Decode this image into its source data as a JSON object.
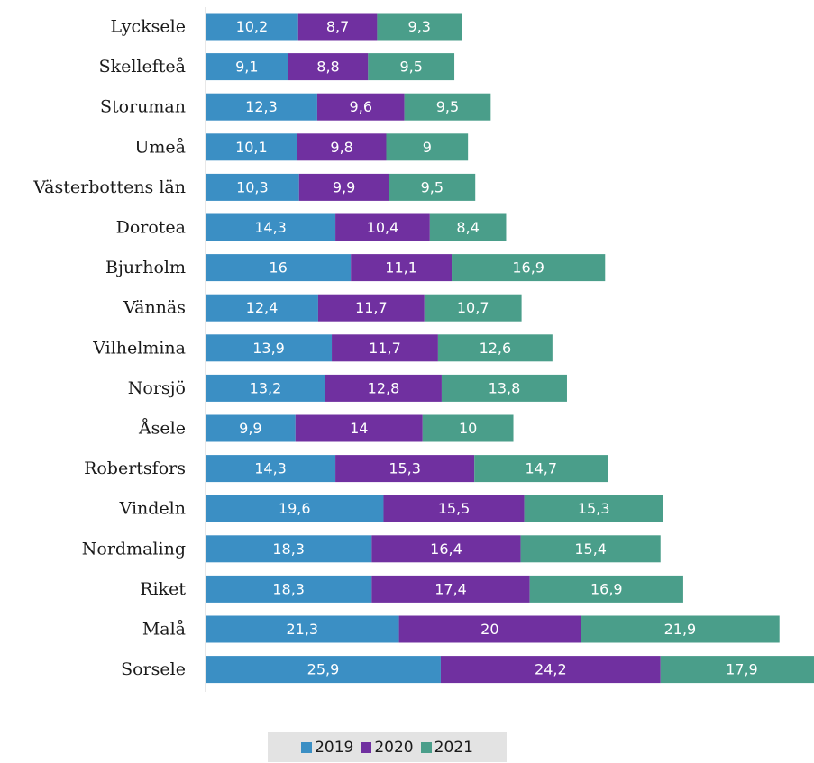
{
  "chart_data": {
    "type": "bar",
    "orientation": "horizontal",
    "stacked": true,
    "title": "",
    "xlabel": "",
    "ylabel": "",
    "categories": [
      "Lycksele",
      "Skellefteå",
      "Storuman",
      "Umeå",
      "Västerbottens län",
      "Dorotea",
      "Bjurholm",
      "Vännäs",
      "Vilhelmina",
      "Norsjö",
      "Åsele",
      "Robertsfors",
      "Vindeln",
      "Nordmaling",
      "Riket",
      "Malå",
      "Sorsele"
    ],
    "series": [
      {
        "name": "2019",
        "color": "#3b8fc4",
        "values": [
          10.2,
          9.1,
          12.3,
          10.1,
          10.3,
          14.3,
          16,
          12.4,
          13.9,
          13.2,
          9.9,
          14.3,
          19.6,
          18.3,
          18.3,
          21.3,
          25.9
        ],
        "labels": [
          "10,2",
          "9,1",
          "12,3",
          "10,1",
          "10,3",
          "14,3",
          "16",
          "12,4",
          "13,9",
          "13,2",
          "9,9",
          "14,3",
          "19,6",
          "18,3",
          "18,3",
          "21,3",
          "25,9"
        ]
      },
      {
        "name": "2020",
        "color": "#7030a0",
        "values": [
          8.7,
          8.8,
          9.6,
          9.8,
          9.9,
          10.4,
          11.1,
          11.7,
          11.7,
          12.8,
          14,
          15.3,
          15.5,
          16.4,
          17.4,
          20,
          24.2
        ],
        "labels": [
          "8,7",
          "8,8",
          "9,6",
          "9,8",
          "9,9",
          "10,4",
          "11,1",
          "11,7",
          "11,7",
          "12,8",
          "14",
          "15,3",
          "15,5",
          "16,4",
          "17,4",
          "20",
          "24,2"
        ]
      },
      {
        "name": "2021",
        "color": "#4a9e8a",
        "values": [
          9.3,
          9.5,
          9.5,
          9,
          9.5,
          8.4,
          16.9,
          10.7,
          12.6,
          13.8,
          10,
          14.7,
          15.3,
          15.4,
          16.9,
          21.9,
          17.9
        ],
        "labels": [
          "9,3",
          "9,5",
          "9,5",
          "9",
          "9,5",
          "8,4",
          "16,9",
          "10,7",
          "12,6",
          "13,8",
          "10",
          "14,7",
          "15,3",
          "15,4",
          "16,9",
          "21,9",
          "17,9"
        ]
      }
    ],
    "xlim": [
      0,
      67
    ],
    "grid": false,
    "legend_position": "bottom"
  }
}
